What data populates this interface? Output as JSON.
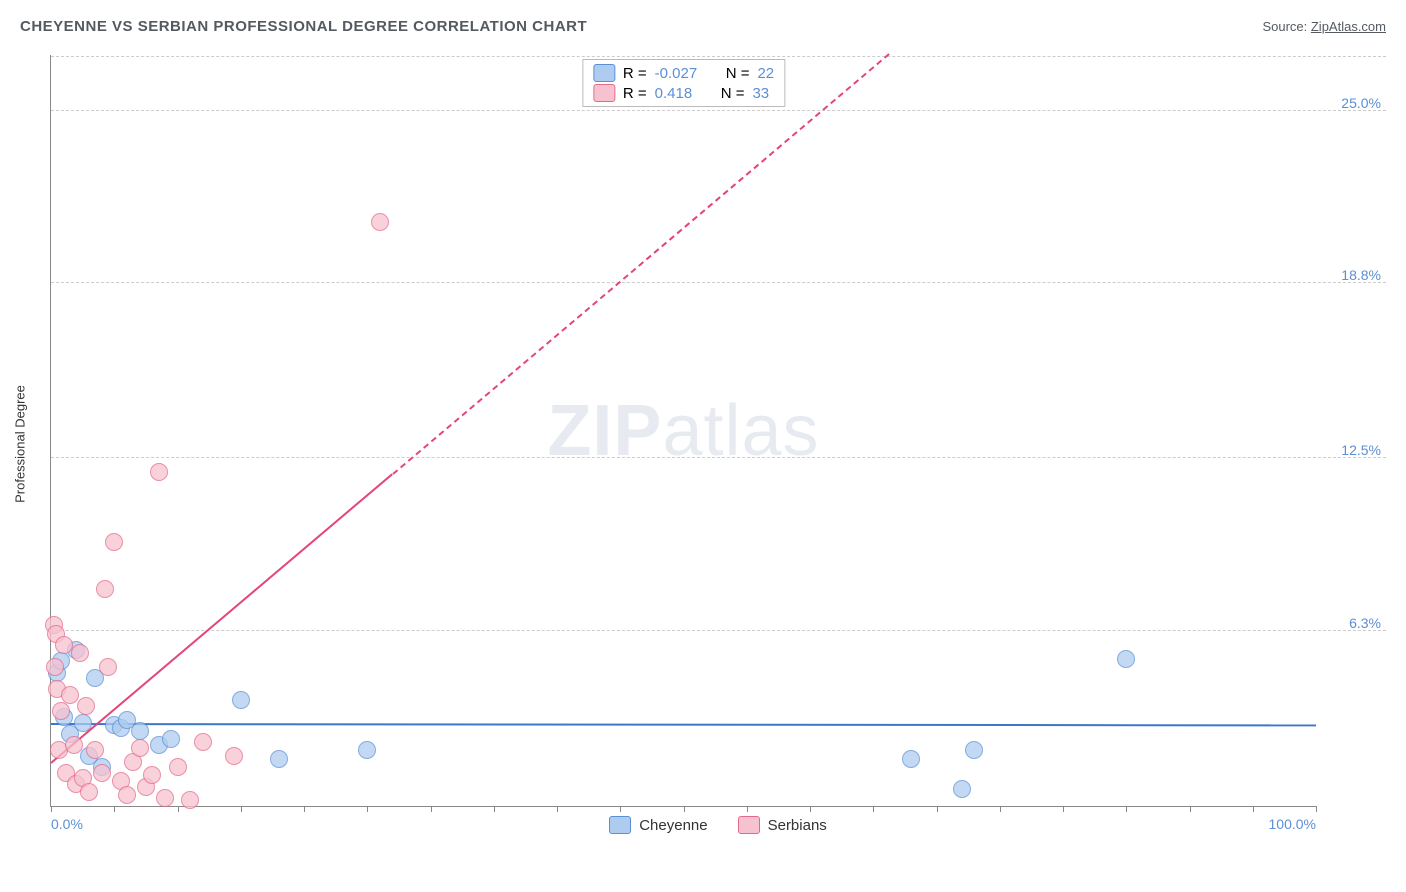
{
  "header": {
    "title": "CHEYENNE VS SERBIAN PROFESSIONAL DEGREE CORRELATION CHART",
    "source_prefix": "Source: ",
    "source_link": "ZipAtlas.com"
  },
  "watermark": {
    "bold": "ZIP",
    "rest": "atlas"
  },
  "chart": {
    "type": "scatter",
    "ylabel": "Professional Degree",
    "xlim": [
      0,
      100
    ],
    "ylim": [
      0,
      27
    ],
    "x_ticks_minor_step": 5,
    "x_ticks": [
      {
        "v": 0,
        "label": "0.0%",
        "align": "left"
      },
      {
        "v": 100,
        "label": "100.0%",
        "align": "right"
      }
    ],
    "y_ticks": [
      {
        "v": 6.3,
        "label": "6.3%"
      },
      {
        "v": 12.5,
        "label": "12.5%"
      },
      {
        "v": 18.8,
        "label": "18.8%"
      },
      {
        "v": 25.0,
        "label": "25.0%"
      }
    ],
    "grid_color": "#cccccc",
    "background_color": "#ffffff",
    "series": [
      {
        "name": "Cheyenne",
        "fill": "#aeccf0",
        "stroke": "#5b8fd6",
        "marker_radius": 9,
        "marker_opacity": 0.75,
        "R": "-0.027",
        "N": "22",
        "trend": {
          "y_at_x0": 2.9,
          "y_at_x100": 2.85,
          "solid_until_x": 100,
          "color": "#3b78c9"
        },
        "points": [
          {
            "x": 0.5,
            "y": 4.8
          },
          {
            "x": 0.8,
            "y": 5.2
          },
          {
            "x": 1.0,
            "y": 3.2
          },
          {
            "x": 1.5,
            "y": 2.6
          },
          {
            "x": 2.0,
            "y": 5.6
          },
          {
            "x": 2.5,
            "y": 3.0
          },
          {
            "x": 3.0,
            "y": 1.8
          },
          {
            "x": 3.5,
            "y": 4.6
          },
          {
            "x": 4.0,
            "y": 1.4
          },
          {
            "x": 5.0,
            "y": 2.9
          },
          {
            "x": 5.5,
            "y": 2.8
          },
          {
            "x": 6.0,
            "y": 3.1
          },
          {
            "x": 7.0,
            "y": 2.7
          },
          {
            "x": 8.5,
            "y": 2.2
          },
          {
            "x": 9.5,
            "y": 2.4
          },
          {
            "x": 15.0,
            "y": 3.8
          },
          {
            "x": 18.0,
            "y": 1.7
          },
          {
            "x": 25.0,
            "y": 2.0
          },
          {
            "x": 68.0,
            "y": 1.7
          },
          {
            "x": 72.0,
            "y": 0.6
          },
          {
            "x": 73.0,
            "y": 2.0
          },
          {
            "x": 85.0,
            "y": 5.3
          }
        ]
      },
      {
        "name": "Serbians",
        "fill": "#f6c2cf",
        "stroke": "#e46a8b",
        "marker_radius": 9,
        "marker_opacity": 0.75,
        "R": "0.418",
        "N": "33",
        "trend": {
          "y_at_x0": 1.5,
          "y_at_x100": 40.0,
          "solid_until_x": 27,
          "color": "#e3457a"
        },
        "points": [
          {
            "x": 0.2,
            "y": 6.5
          },
          {
            "x": 0.3,
            "y": 5.0
          },
          {
            "x": 0.4,
            "y": 6.2
          },
          {
            "x": 0.5,
            "y": 4.2
          },
          {
            "x": 0.6,
            "y": 2.0
          },
          {
            "x": 0.8,
            "y": 3.4
          },
          {
            "x": 1.0,
            "y": 5.8
          },
          {
            "x": 1.2,
            "y": 1.2
          },
          {
            "x": 1.5,
            "y": 4.0
          },
          {
            "x": 1.8,
            "y": 2.2
          },
          {
            "x": 2.0,
            "y": 0.8
          },
          {
            "x": 2.3,
            "y": 5.5
          },
          {
            "x": 2.5,
            "y": 1.0
          },
          {
            "x": 2.8,
            "y": 3.6
          },
          {
            "x": 3.0,
            "y": 0.5
          },
          {
            "x": 3.5,
            "y": 2.0
          },
          {
            "x": 4.0,
            "y": 1.2
          },
          {
            "x": 4.3,
            "y": 7.8
          },
          {
            "x": 4.5,
            "y": 5.0
          },
          {
            "x": 5.0,
            "y": 9.5
          },
          {
            "x": 5.5,
            "y": 0.9
          },
          {
            "x": 6.0,
            "y": 0.4
          },
          {
            "x": 6.5,
            "y": 1.6
          },
          {
            "x": 7.0,
            "y": 2.1
          },
          {
            "x": 7.5,
            "y": 0.7
          },
          {
            "x": 8.0,
            "y": 1.1
          },
          {
            "x": 8.5,
            "y": 12.0
          },
          {
            "x": 9.0,
            "y": 0.3
          },
          {
            "x": 10.0,
            "y": 1.4
          },
          {
            "x": 11.0,
            "y": 0.2
          },
          {
            "x": 12.0,
            "y": 2.3
          },
          {
            "x": 14.5,
            "y": 1.8
          },
          {
            "x": 26.0,
            "y": 21.0
          }
        ]
      }
    ],
    "legend_top": {
      "r_label": "R =",
      "n_label": "N ="
    },
    "legend_bottom_labels": [
      "Cheyenne",
      "Serbians"
    ]
  }
}
